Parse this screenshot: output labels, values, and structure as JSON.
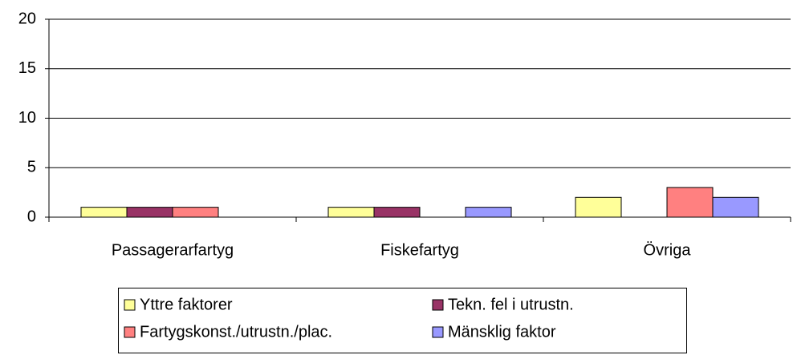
{
  "chart_data": {
    "type": "bar",
    "categories": [
      "Passagerarfartyg",
      "Fiskefartyg",
      "Övriga"
    ],
    "series": [
      {
        "name": "Yttre faktorer",
        "color": "#ffff99",
        "values": [
          1,
          1,
          2
        ]
      },
      {
        "name": "Tekn. fel i utrustn.",
        "color": "#993366",
        "values": [
          1,
          1,
          0
        ]
      },
      {
        "name": "Fartygskonst./utrustn./plac.",
        "color": "#ff8080",
        "values": [
          1,
          0,
          3
        ]
      },
      {
        "name": "Mänsklig faktor",
        "color": "#9999ff",
        "values": [
          0,
          1,
          2
        ]
      }
    ],
    "ylim": [
      0,
      20
    ],
    "yticks": [
      0,
      5,
      10,
      15,
      20
    ],
    "grid": true
  }
}
